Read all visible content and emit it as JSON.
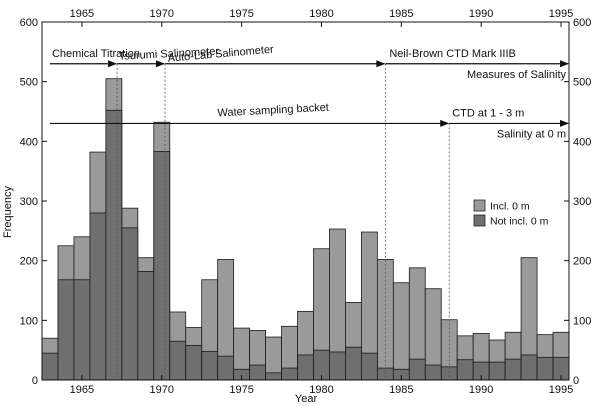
{
  "chart_data": {
    "type": "bar",
    "title": "",
    "xlabel": "Year",
    "ylabel": "Frequency",
    "xlim": [
      1962.5,
      1995.5
    ],
    "ylim": [
      0,
      600
    ],
    "x_ticks": [
      "1965",
      "1970",
      "1975",
      "1980",
      "1985",
      "1990",
      "1995"
    ],
    "y_ticks": [
      "0",
      "100",
      "200",
      "300",
      "400",
      "500",
      "600"
    ],
    "grid": false,
    "legend_position": "right",
    "years": [
      1963,
      1964,
      1965,
      1966,
      1967,
      1968,
      1969,
      1970,
      1971,
      1972,
      1973,
      1974,
      1975,
      1976,
      1977,
      1978,
      1979,
      1980,
      1981,
      1982,
      1983,
      1984,
      1985,
      1986,
      1987,
      1988,
      1989,
      1990,
      1991,
      1992,
      1993,
      1994,
      1995
    ],
    "series": [
      {
        "name": "Incl. 0 m",
        "color": "#9a9a9a",
        "values": [
          70,
          225,
          240,
          382,
          505,
          288,
          205,
          432,
          114,
          88,
          168,
          202,
          87,
          83,
          72,
          90,
          115,
          220,
          253,
          130,
          248,
          202,
          163,
          188,
          153,
          101,
          74,
          78,
          67,
          80,
          205,
          76,
          80
        ]
      },
      {
        "name": "Not incl. 0 m",
        "color": "#6f6f6f",
        "values": [
          45,
          168,
          168,
          280,
          452,
          255,
          182,
          383,
          65,
          58,
          48,
          40,
          18,
          25,
          12,
          20,
          42,
          50,
          47,
          55,
          45,
          20,
          18,
          35,
          25,
          22,
          34,
          30,
          30,
          35,
          42,
          38,
          38
        ]
      }
    ],
    "annotations": {
      "instrument": [
        {
          "label": "Chemical Titration",
          "year": 1963.0
        },
        {
          "label": "Tsurumi Salinometer",
          "year": 1967.2
        },
        {
          "label": "Auto-Lab Salinometer",
          "year": 1970.2
        },
        {
          "label": "Neil-Brown CTD Mark IIIB",
          "year": 1984.0
        }
      ],
      "instrument_caption": "Measures of Salinity",
      "sampling": [
        {
          "label": "Water sampling backet",
          "year": 1963.0
        },
        {
          "label": "CTD at 1 - 3 m",
          "year": 1988.0
        }
      ],
      "sampling_caption": "Salinity at 0 m"
    }
  }
}
